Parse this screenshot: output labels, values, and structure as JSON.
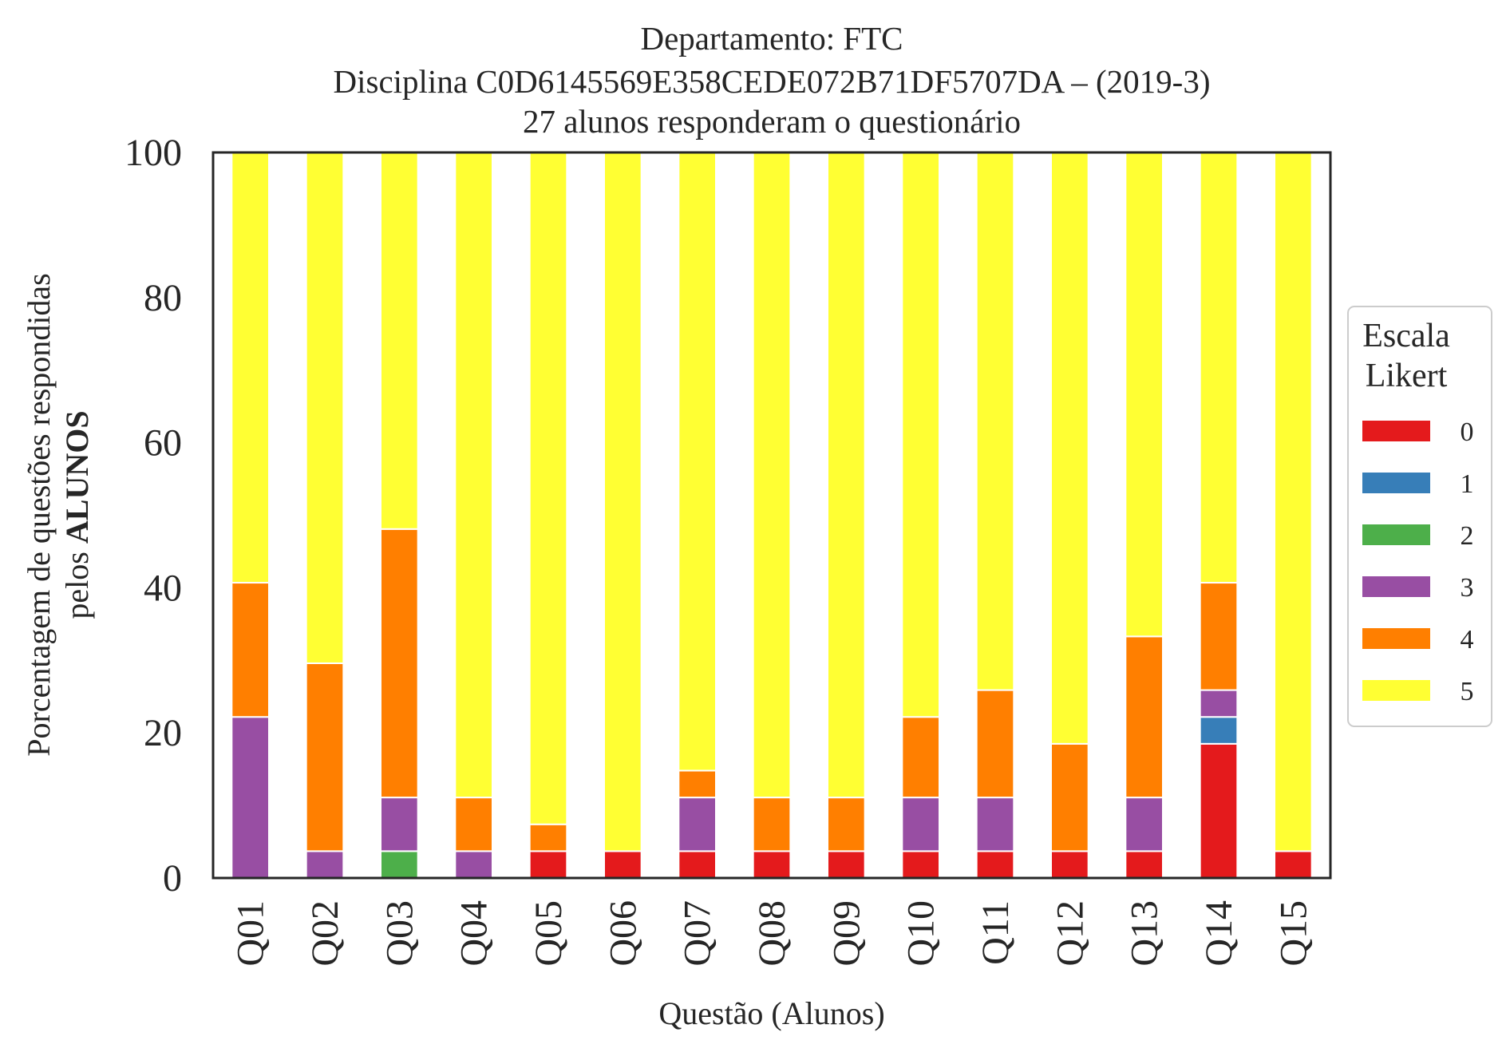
{
  "chart_data": {
    "type": "bar",
    "stacked": true,
    "title": [
      "Departamento: FTC",
      "Disciplina C0D6145569E358CEDE072B71DF5707DA – (2019-3)",
      "27 alunos responderam o questionário"
    ],
    "xlabel": "Questão (Alunos)",
    "ylabel_line1": "Porcentagem de questões respondidas",
    "ylabel_line2_prefix": "pelos ",
    "ylabel_line2_bold": "ALUNOS",
    "ylim": [
      0,
      100
    ],
    "yticks": [
      "0",
      "20",
      "40",
      "60",
      "80",
      "100"
    ],
    "grid": false,
    "legend": {
      "title_line1": "Escala",
      "title_line2": "Likert",
      "placement": "right"
    },
    "categories": [
      "Q01",
      "Q02",
      "Q03",
      "Q04",
      "Q05",
      "Q06",
      "Q07",
      "Q08",
      "Q09",
      "Q10",
      "Q11",
      "Q12",
      "Q13",
      "Q14",
      "Q15"
    ],
    "series": [
      {
        "name": "0",
        "color": "#e41a1c",
        "values": [
          0,
          0,
          0,
          0,
          3.7,
          3.7,
          3.7,
          3.7,
          3.7,
          3.7,
          3.7,
          3.7,
          3.7,
          18.5,
          3.7
        ]
      },
      {
        "name": "1",
        "color": "#377eb8",
        "values": [
          0,
          0,
          0,
          0,
          0,
          0,
          0,
          0,
          0,
          0,
          0,
          0,
          0,
          3.7,
          0
        ]
      },
      {
        "name": "2",
        "color": "#4daf4a",
        "values": [
          0,
          0,
          3.7,
          0,
          0,
          0,
          0,
          0,
          0,
          0,
          0,
          0,
          0,
          0,
          0
        ]
      },
      {
        "name": "3",
        "color": "#984ea3",
        "values": [
          22.2,
          3.7,
          7.4,
          3.7,
          0,
          0,
          7.4,
          0,
          0,
          7.4,
          7.4,
          0,
          7.4,
          3.7,
          0
        ]
      },
      {
        "name": "4",
        "color": "#ff7f00",
        "values": [
          18.5,
          25.9,
          37.0,
          7.4,
          3.7,
          0,
          3.7,
          7.4,
          7.4,
          11.1,
          14.8,
          14.8,
          22.2,
          14.8,
          0
        ]
      },
      {
        "name": "5",
        "color": "#ffff33",
        "values": [
          59.3,
          70.4,
          51.9,
          88.9,
          92.6,
          96.3,
          85.2,
          88.9,
          88.9,
          77.8,
          74.1,
          81.5,
          66.7,
          59.3,
          96.3
        ]
      }
    ]
  }
}
